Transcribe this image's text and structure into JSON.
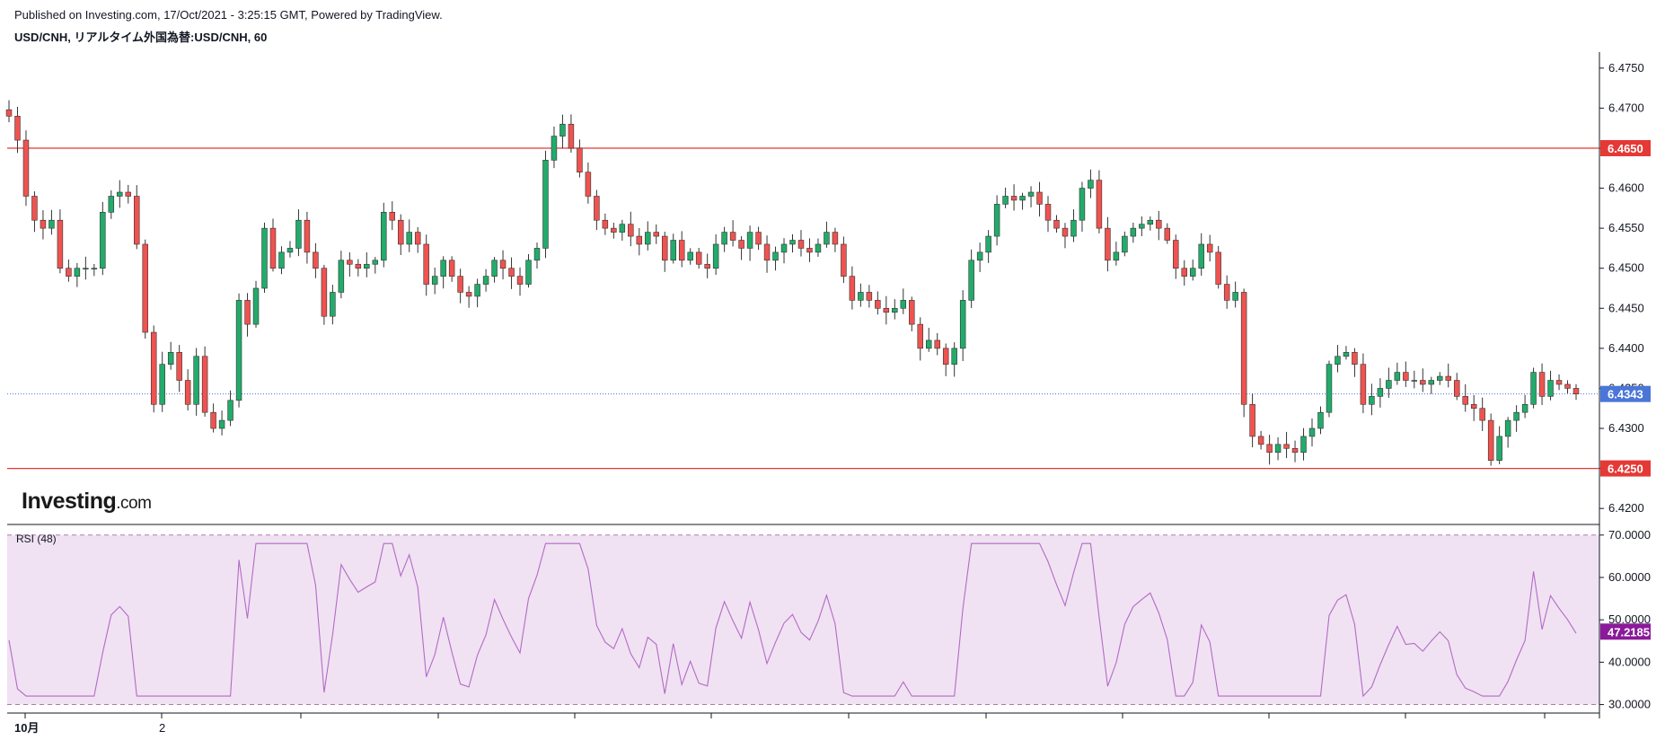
{
  "header": {
    "published": "Published on Investing.com, 17/Oct/2021 - 3:25:15 GMT, Powered by TradingView.",
    "symbol": "USD/CNH, リアルタイム外国為替:USD/CNH, 60"
  },
  "logo": {
    "brand": "Investing",
    "suffix": ".com"
  },
  "colors": {
    "up": "#26a69a",
    "up_fill": "#22ab6b",
    "down": "#ef5350",
    "level": "#e53935",
    "last": "#4a76d8",
    "rsi_line": "#b36ac7",
    "rsi_value_bg": "#8b1a9a",
    "rsi_band": "#f0e2f2"
  },
  "chart_data": [
    {
      "type": "candlestick",
      "interval": "60",
      "ylim": [
        6.418,
        6.477
      ],
      "y_ticks": [
        "6.4200",
        "6.4250",
        "6.4300",
        "6.4350",
        "6.4400",
        "6.4450",
        "6.4500",
        "6.4550",
        "6.4600",
        "6.4650",
        "6.4700",
        "6.4750"
      ],
      "x_ticks": [
        "10月",
        "2"
      ],
      "levels": [
        {
          "label": "6.4650",
          "value": 6.465
        },
        {
          "label": "6.4250",
          "value": 6.425
        }
      ],
      "last_price": {
        "label": "6.4343",
        "value": 6.4343
      },
      "series_close": [
        6.469,
        6.466,
        6.459,
        6.456,
        6.455,
        6.456,
        6.45,
        6.449,
        6.45,
        6.45,
        6.45,
        6.457,
        6.459,
        6.4595,
        6.459,
        6.453,
        6.442,
        6.433,
        6.438,
        6.4395,
        6.436,
        6.433,
        6.439,
        6.432,
        6.43,
        6.431,
        6.4335,
        6.446,
        6.443,
        6.4475,
        6.455,
        6.45,
        6.452,
        6.4525,
        6.456,
        6.452,
        6.45,
        6.444,
        6.447,
        6.451,
        6.4505,
        6.45,
        6.4505,
        6.451,
        6.457,
        6.456,
        6.453,
        6.4545,
        6.453,
        6.448,
        6.449,
        6.451,
        6.449,
        6.447,
        6.4465,
        6.448,
        6.449,
        6.451,
        6.45,
        6.449,
        6.448,
        6.451,
        6.4525,
        6.4635,
        6.4665,
        6.468,
        6.465,
        6.462,
        6.459,
        6.456,
        6.455,
        6.4545,
        6.4555,
        6.454,
        6.453,
        6.4545,
        6.454,
        6.451,
        6.4535,
        6.451,
        6.452,
        6.4505,
        6.45,
        6.453,
        6.4545,
        6.4535,
        6.4525,
        6.4545,
        6.453,
        6.451,
        6.452,
        6.453,
        6.4535,
        6.4525,
        6.452,
        6.453,
        6.4545,
        6.453,
        6.449,
        6.446,
        6.447,
        6.446,
        6.445,
        6.4445,
        6.445,
        6.446,
        6.443,
        6.44,
        6.441,
        6.44,
        6.438,
        6.44,
        6.446,
        6.451,
        6.452,
        6.454,
        6.458,
        6.459,
        6.4585,
        6.459,
        6.4595,
        6.458,
        6.456,
        6.455,
        6.454,
        6.456,
        6.46,
        6.461,
        6.455,
        6.451,
        6.452,
        6.454,
        6.455,
        6.4555,
        6.456,
        6.455,
        6.4535,
        6.45,
        6.449,
        6.45,
        6.453,
        6.452,
        6.448,
        6.446,
        6.447,
        6.433,
        6.429,
        6.428,
        6.427,
        6.428,
        6.4275,
        6.427,
        6.429,
        6.43,
        6.432,
        6.438,
        6.439,
        6.4395,
        6.438,
        6.433,
        6.434,
        6.435,
        6.436,
        6.437,
        6.436,
        6.436,
        6.4355,
        6.436,
        6.4365,
        6.436,
        6.434,
        6.433,
        6.4325,
        6.431,
        6.426,
        6.429,
        6.431,
        6.432,
        6.433,
        6.437,
        6.434,
        6.436,
        6.4355,
        6.435,
        6.4343
      ]
    },
    {
      "type": "line",
      "title": "RSI (48)",
      "ylim": [
        28.0,
        72.5
      ],
      "y_ticks": [
        "30.0000",
        "40.0000",
        "50.0000",
        "60.0000",
        "70.0000"
      ],
      "bands": [
        30,
        70
      ],
      "current": {
        "label": "47.2185",
        "value": 47.2185
      }
    }
  ]
}
